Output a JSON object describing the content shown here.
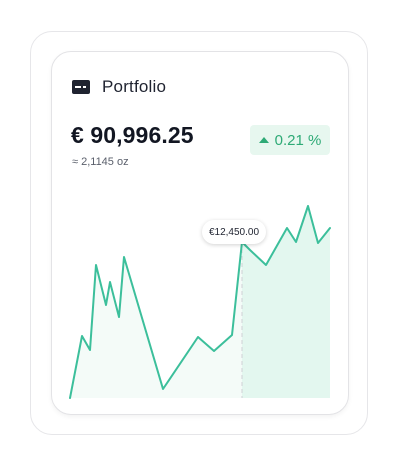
{
  "portfolio": {
    "title": "Portfolio",
    "icon": "wallet-icon",
    "balance": "€ 90,996.25",
    "sub_amount": "≈ 2,1145 oz",
    "change": {
      "text": "0.21 %",
      "direction": "up",
      "color": "#2eaa76",
      "background": "#e7f7ef"
    },
    "tooltip": "€12,450.00"
  },
  "colors": {
    "line": "#3cbf9b",
    "fill_active": "#e6f8f1",
    "fill_past": "#f3fbf8",
    "text_primary": "#121622"
  }
}
